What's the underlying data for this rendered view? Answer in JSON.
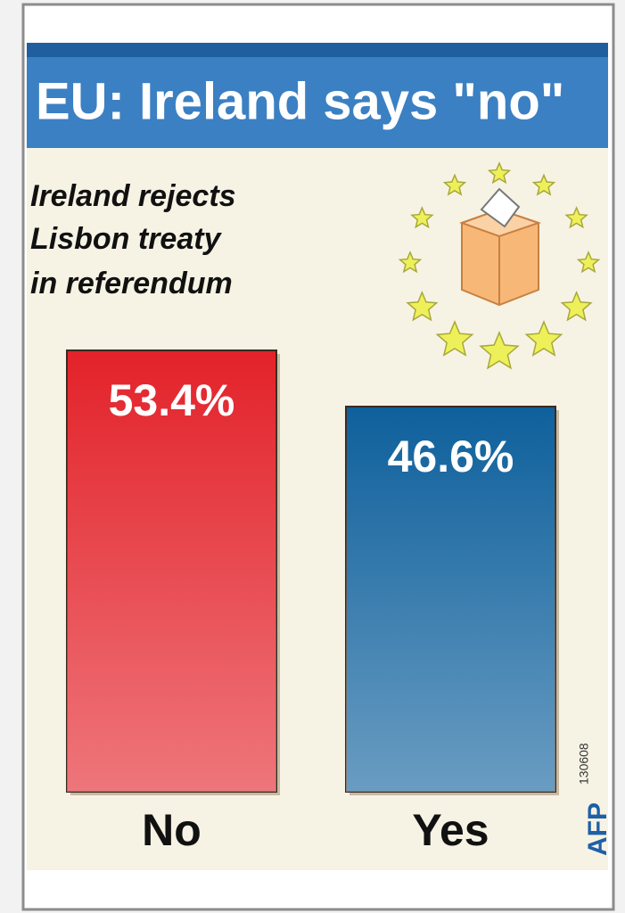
{
  "chart_data": {
    "type": "bar",
    "title": "EU: Ireland says \"no\"",
    "subtitle": [
      "Ireland rejects",
      "Lisbon treaty",
      "in referendum"
    ],
    "categories": [
      "No",
      "Yes"
    ],
    "values": [
      53.4,
      46.6
    ],
    "value_labels": [
      "53.4%",
      "46.6%"
    ],
    "colors": [
      "#e3222a",
      "#0e609c"
    ],
    "credit": "AFP",
    "date_code": "130608"
  }
}
